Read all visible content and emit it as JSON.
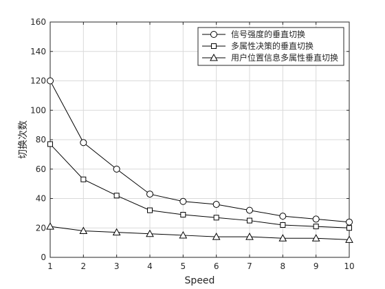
{
  "chart_data": {
    "type": "line",
    "title": "",
    "xlabel": "Speed",
    "ylabel": "切换次数",
    "x": [
      1,
      2,
      3,
      4,
      5,
      6,
      7,
      8,
      9,
      10
    ],
    "xlim": [
      1,
      10
    ],
    "ylim": [
      0,
      160
    ],
    "xticks": [
      1,
      2,
      3,
      4,
      5,
      6,
      7,
      8,
      9,
      10
    ],
    "yticks": [
      0,
      20,
      40,
      60,
      80,
      100,
      120,
      140,
      160
    ],
    "grid": true,
    "legend_position": "top-right",
    "series": [
      {
        "name": "信号强度的垂直切换",
        "marker": "circle",
        "values": [
          120,
          78,
          60,
          43,
          38,
          36,
          32,
          28,
          26,
          24
        ]
      },
      {
        "name": "多属性决策的垂直切换",
        "marker": "square",
        "values": [
          77,
          53,
          42,
          32,
          29,
          27,
          25,
          22,
          21,
          20
        ]
      },
      {
        "name": "用户位置信息多属性垂直切换",
        "marker": "triangle",
        "values": [
          21,
          18,
          17,
          16,
          15,
          14,
          14,
          13,
          13,
          12
        ]
      }
    ],
    "colors": {
      "line": "#000000",
      "axis": "#262626",
      "grid": "#d9d9d9",
      "background": "#ffffff"
    }
  }
}
